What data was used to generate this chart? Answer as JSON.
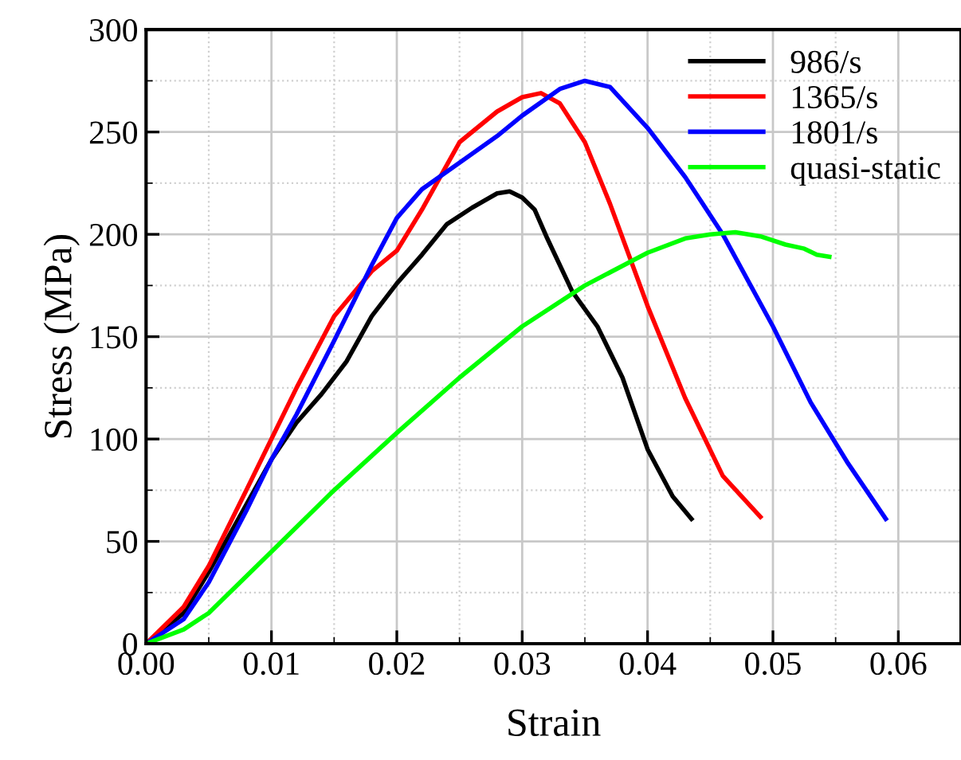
{
  "chart_data": {
    "type": "line",
    "xlabel": "Strain",
    "ylabel": "Stress (MPa)",
    "xlim": [
      0,
      0.065
    ],
    "xticks": [
      {
        "value": 0,
        "label": "0.00"
      },
      {
        "value": 0.01,
        "label": "0.01"
      },
      {
        "value": 0.02,
        "label": "0.02"
      },
      {
        "value": 0.03,
        "label": "0.03"
      },
      {
        "value": 0.04,
        "label": "0.04"
      },
      {
        "value": 0.05,
        "label": "0.05"
      },
      {
        "value": 0.06,
        "label": "0.06"
      }
    ],
    "ylim": [
      0,
      300
    ],
    "yticks": [
      0,
      50,
      100,
      150,
      200,
      250,
      300
    ],
    "grid": true,
    "legend": "top right",
    "marker": "none",
    "line_style": "solid",
    "series": [
      {
        "name": "986/s",
        "color": "#000000",
        "x": [
          0,
          0.003,
          0.005,
          0.008,
          0.01,
          0.012,
          0.014,
          0.016,
          0.018,
          0.02,
          0.022,
          0.024,
          0.026,
          0.028,
          0.029,
          0.03,
          0.031,
          0.032,
          0.034,
          0.036,
          0.038,
          0.04,
          0.042,
          0.0435
        ],
        "values": [
          0,
          15,
          35,
          68,
          90,
          108,
          122,
          138,
          160,
          176,
          190,
          205,
          213,
          220,
          221,
          218,
          212,
          198,
          172,
          155,
          130,
          95,
          72,
          61
        ]
      },
      {
        "name": "1365/s",
        "color": "#ff0000",
        "x": [
          0,
          0.003,
          0.005,
          0.008,
          0.01,
          0.012,
          0.015,
          0.018,
          0.02,
          0.022,
          0.025,
          0.028,
          0.03,
          0.0315,
          0.033,
          0.035,
          0.037,
          0.04,
          0.043,
          0.046,
          0.049
        ],
        "values": [
          0,
          18,
          38,
          75,
          100,
          125,
          160,
          182,
          192,
          212,
          245,
          260,
          267,
          269,
          264,
          245,
          215,
          165,
          120,
          82,
          62
        ]
      },
      {
        "name": "1801/s",
        "color": "#0000ff",
        "x": [
          0,
          0.003,
          0.005,
          0.008,
          0.01,
          0.012,
          0.015,
          0.018,
          0.02,
          0.022,
          0.025,
          0.028,
          0.03,
          0.033,
          0.035,
          0.037,
          0.04,
          0.043,
          0.046,
          0.05,
          0.053,
          0.056,
          0.059
        ],
        "values": [
          0,
          12,
          30,
          65,
          90,
          112,
          148,
          185,
          208,
          222,
          235,
          248,
          258,
          271,
          275,
          272,
          252,
          228,
          200,
          155,
          118,
          88,
          61
        ]
      },
      {
        "name": "quasi-static",
        "color": "#00ff00",
        "x": [
          0,
          0.003,
          0.005,
          0.01,
          0.015,
          0.02,
          0.025,
          0.03,
          0.035,
          0.04,
          0.043,
          0.045,
          0.047,
          0.049,
          0.051,
          0.0525,
          0.0535,
          0.0545
        ],
        "values": [
          0,
          7,
          15,
          45,
          75,
          103,
          130,
          155,
          175,
          191,
          198,
          200,
          201,
          199,
          195,
          193,
          190,
          189
        ]
      }
    ]
  }
}
